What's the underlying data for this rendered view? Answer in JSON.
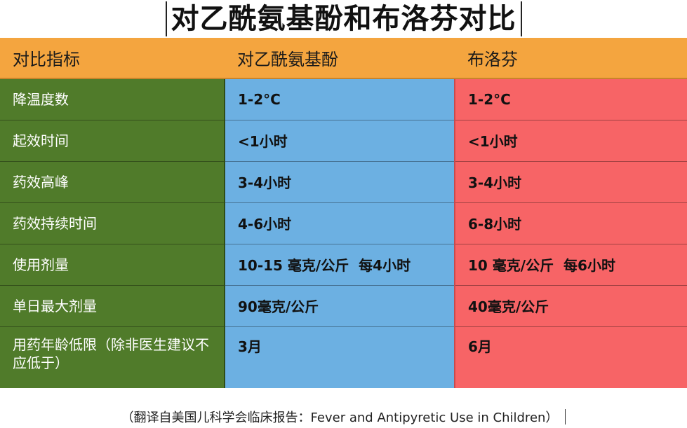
{
  "title": "对乙酰氨基酚和布洛芬对比",
  "headers": [
    "对比指标",
    "对乙酰氨基酚",
    "布洛芬"
  ],
  "rows": [
    {
      "metric": "降温度数",
      "acetaminophen": "1-2°C",
      "ibuprofen": "1-2°C"
    },
    {
      "metric": "起效时间",
      "acetaminophen": "<1小时",
      "ibuprofen": "<1小时"
    },
    {
      "metric": "药效高峰",
      "acetaminophen": "3-4小时",
      "ibuprofen": "3-4小时"
    },
    {
      "metric": "药效持续时间",
      "acetaminophen": "4-6小时",
      "ibuprofen": "6-8小时"
    },
    {
      "metric": "使用剂量",
      "acetaminophen": "10-15 毫克/公斤  每4小时",
      "ibuprofen": "10 毫克/公斤  每6小时"
    },
    {
      "metric": "单日最大剂量",
      "acetaminophen": "90毫克/公斤",
      "ibuprofen": "40毫克/公斤"
    },
    {
      "metric": "用药年龄低限（除非医生建议不应低于）",
      "acetaminophen": "3月",
      "ibuprofen": "6月"
    }
  ],
  "footnote": "（翻译自美国儿科学会临床报告：Fever and Antipyretic Use in Children）",
  "colors": {
    "header_bg": "#f4a53f",
    "metric_bg": "#507b2a",
    "acetaminophen_bg": "#6cb0e2",
    "ibuprofen_bg": "#f76466"
  }
}
